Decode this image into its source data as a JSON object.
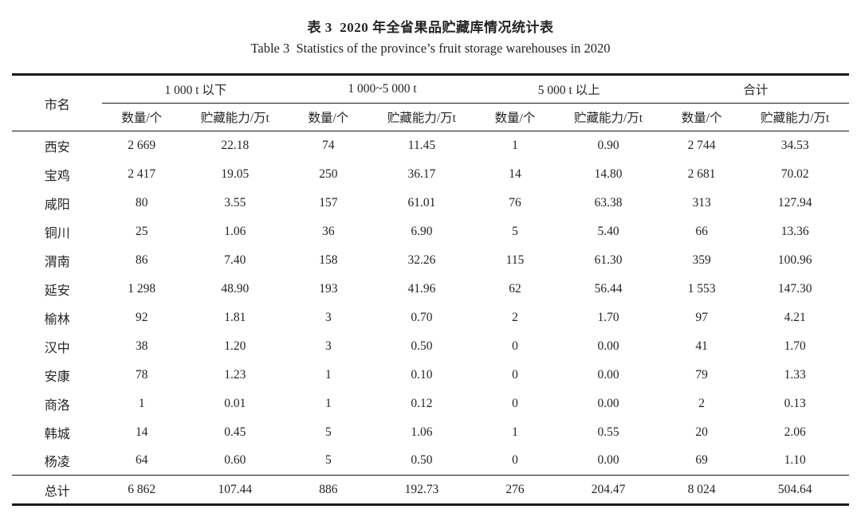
{
  "page": {
    "title_zh": "表 3  2020 年全省果品贮藏库情况统计表",
    "title_en": "Table 3  Statistics of the province’s fruit storage warehouses in 2020"
  },
  "table": {
    "header": {
      "city": "市名",
      "groups": [
        {
          "label": "1 000 t 以下"
        },
        {
          "label": "1 000~5 000 t"
        },
        {
          "label": "5 000 t 以上"
        },
        {
          "label": "合计"
        }
      ],
      "sub_count": "数量/个",
      "sub_capacity": "贮藏能力/万t"
    },
    "rows": [
      {
        "city": "西安",
        "values": [
          "2 669",
          "22.18",
          "74",
          "11.45",
          "1",
          "0.90",
          "2 744",
          "34.53"
        ]
      },
      {
        "city": "宝鸡",
        "values": [
          "2 417",
          "19.05",
          "250",
          "36.17",
          "14",
          "14.80",
          "2 681",
          "70.02"
        ]
      },
      {
        "city": "咸阳",
        "values": [
          "80",
          "3.55",
          "157",
          "61.01",
          "76",
          "63.38",
          "313",
          "127.94"
        ]
      },
      {
        "city": "铜川",
        "values": [
          "25",
          "1.06",
          "36",
          "6.90",
          "5",
          "5.40",
          "66",
          "13.36"
        ]
      },
      {
        "city": "渭南",
        "values": [
          "86",
          "7.40",
          "158",
          "32.26",
          "115",
          "61.30",
          "359",
          "100.96"
        ]
      },
      {
        "city": "延安",
        "values": [
          "1 298",
          "48.90",
          "193",
          "41.96",
          "62",
          "56.44",
          "1 553",
          "147.30"
        ]
      },
      {
        "city": "榆林",
        "values": [
          "92",
          "1.81",
          "3",
          "0.70",
          "2",
          "1.70",
          "97",
          "4.21"
        ]
      },
      {
        "city": "汉中",
        "values": [
          "38",
          "1.20",
          "3",
          "0.50",
          "0",
          "0.00",
          "41",
          "1.70"
        ]
      },
      {
        "city": "安康",
        "values": [
          "78",
          "1.23",
          "1",
          "0.10",
          "0",
          "0.00",
          "79",
          "1.33"
        ]
      },
      {
        "city": "商洛",
        "values": [
          "1",
          "0.01",
          "1",
          "0.12",
          "0",
          "0.00",
          "2",
          "0.13"
        ]
      },
      {
        "city": "韩城",
        "values": [
          "14",
          "0.45",
          "5",
          "1.06",
          "1",
          "0.55",
          "20",
          "2.06"
        ]
      },
      {
        "city": "杨凌",
        "values": [
          "64",
          "0.60",
          "5",
          "0.50",
          "0",
          "0.00",
          "69",
          "1.10"
        ]
      }
    ],
    "total": {
      "city": "总计",
      "values": [
        "6 862",
        "107.44",
        "886",
        "192.73",
        "276",
        "204.47",
        "8 024",
        "504.64"
      ]
    }
  },
  "colors": {
    "background": "#ffffff",
    "text": "#242424",
    "rule": "#1a1a1a"
  }
}
